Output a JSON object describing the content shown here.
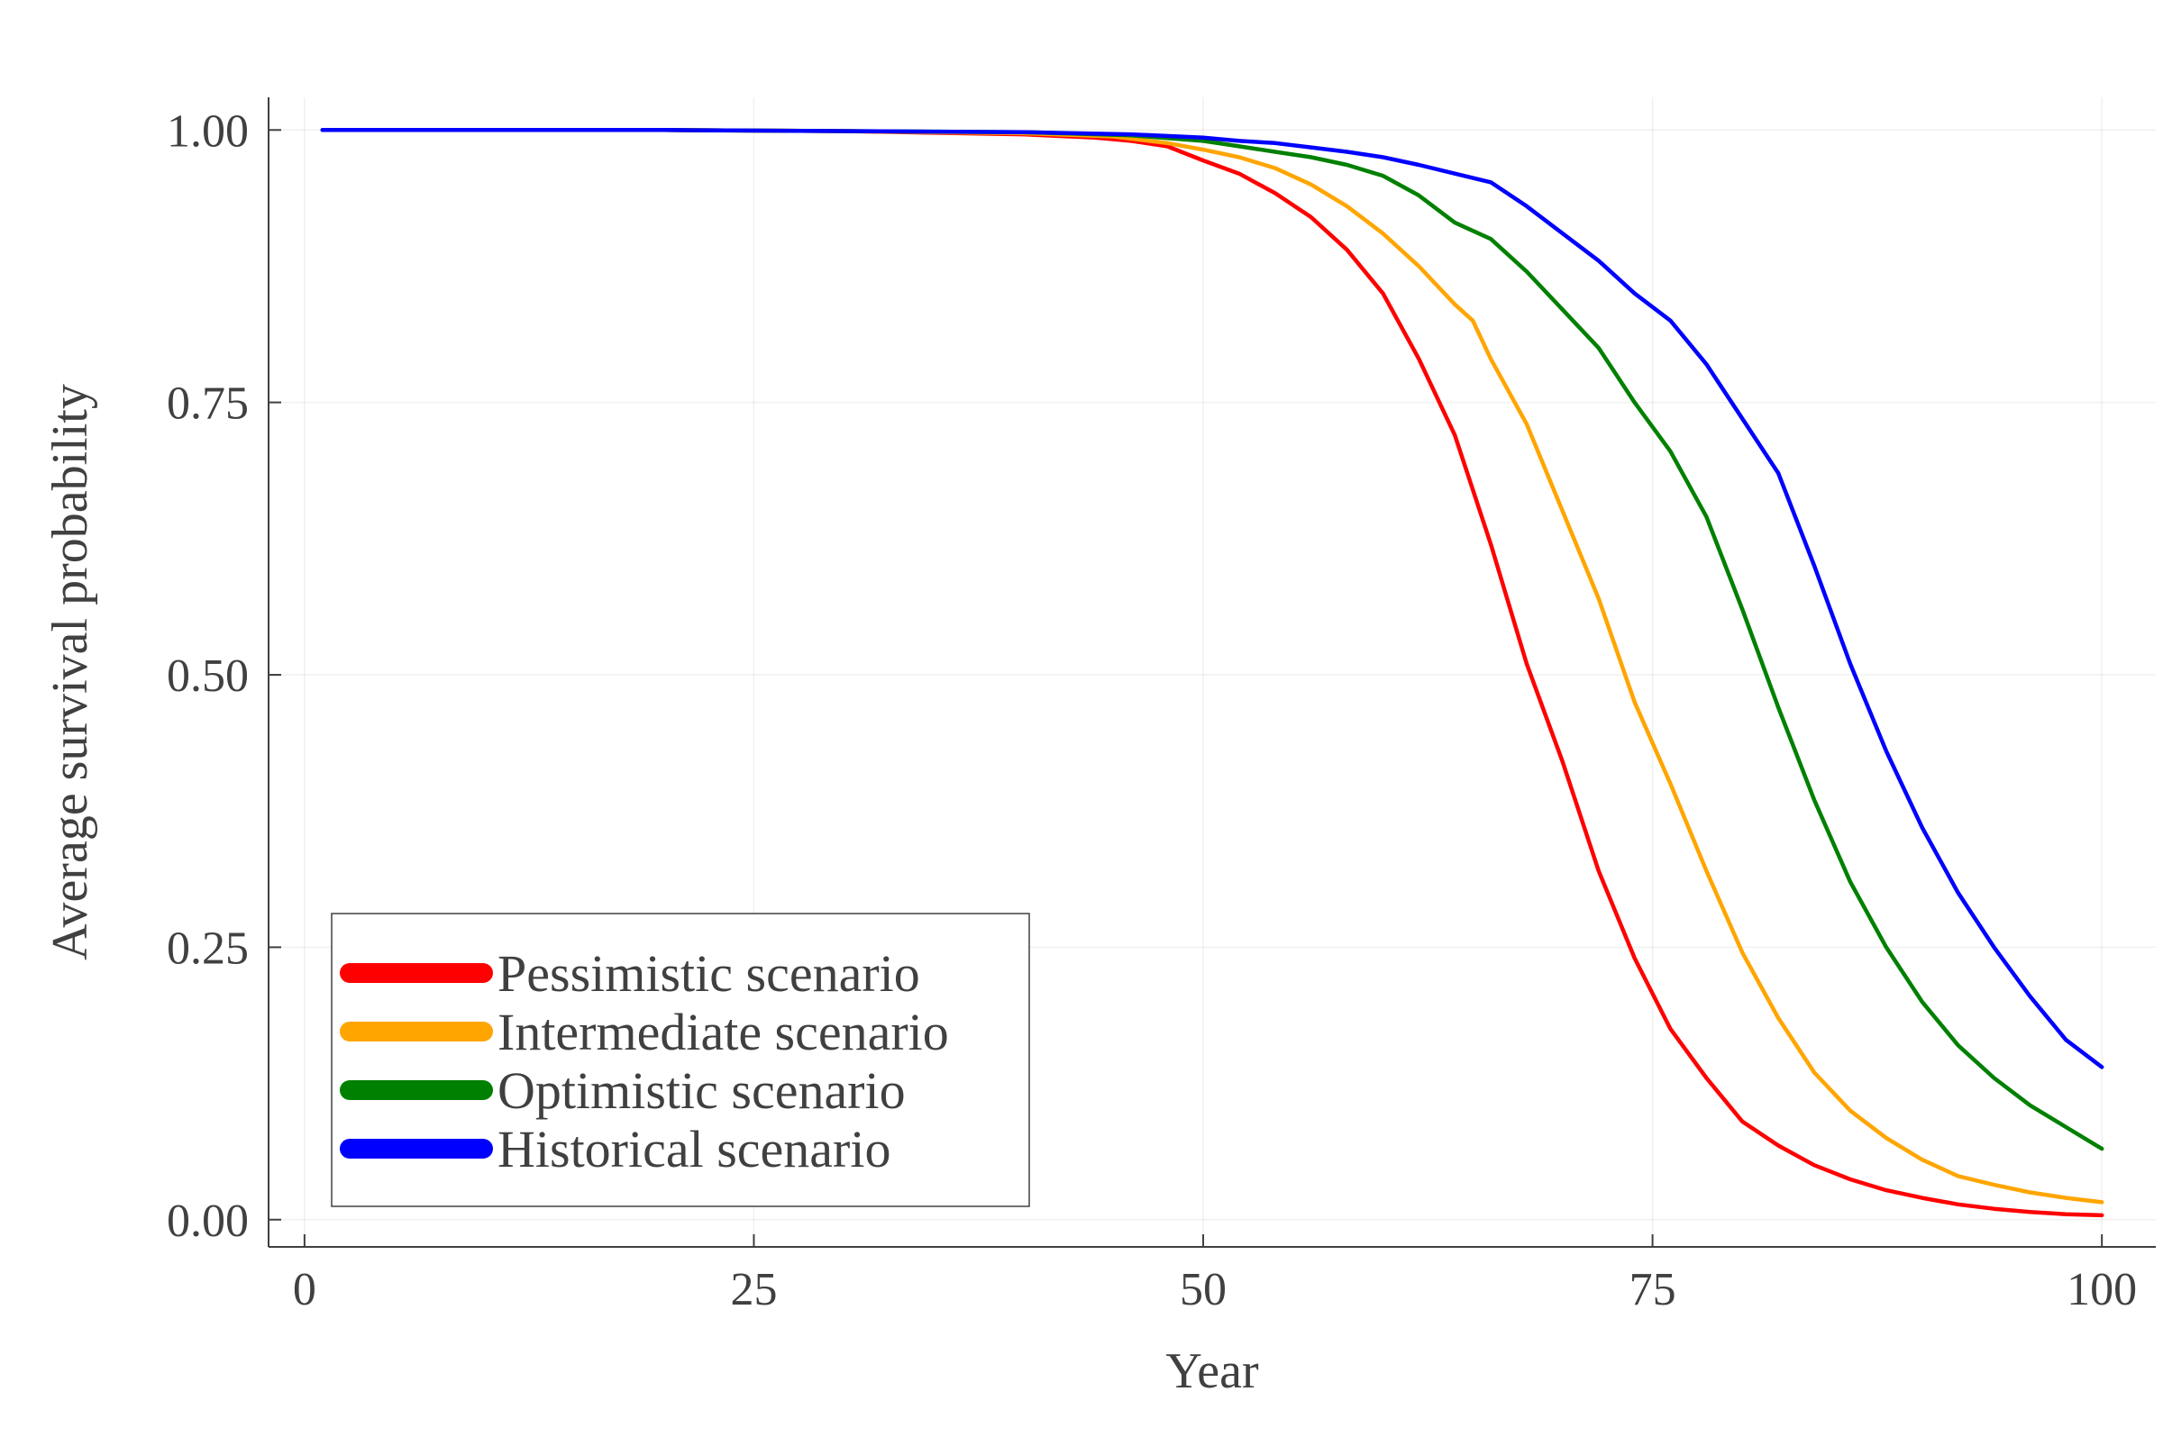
{
  "chart_data": {
    "type": "line",
    "title": "",
    "xlabel": "Year",
    "ylabel": "Average survival probability",
    "xlim": [
      -2,
      103
    ],
    "ylim": [
      -0.025,
      1.03
    ],
    "x_ticks": [
      0,
      25,
      50,
      75,
      100
    ],
    "x_tick_labels": [
      "0",
      "25",
      "50",
      "75",
      "100"
    ],
    "y_ticks": [
      0.0,
      0.25,
      0.5,
      0.75,
      1.0
    ],
    "y_tick_labels": [
      "0.00",
      "0.25",
      "0.50",
      "0.75",
      "1.00"
    ],
    "grid": true,
    "legend_position": "bottom-left",
    "series": [
      {
        "name": "Pessimistic scenario",
        "color": "#ff0000",
        "points": [
          [
            1,
            1.0
          ],
          [
            20,
            1.0
          ],
          [
            30,
            0.999
          ],
          [
            40,
            0.996
          ],
          [
            44,
            0.993
          ],
          [
            46,
            0.99
          ],
          [
            48,
            0.985
          ],
          [
            50,
            0.972
          ],
          [
            52,
            0.96
          ],
          [
            54,
            0.942
          ],
          [
            56,
            0.92
          ],
          [
            58,
            0.89
          ],
          [
            60,
            0.85
          ],
          [
            62,
            0.79
          ],
          [
            64,
            0.72
          ],
          [
            66,
            0.62
          ],
          [
            68,
            0.51
          ],
          [
            70,
            0.42
          ],
          [
            72,
            0.32
          ],
          [
            74,
            0.24
          ],
          [
            76,
            0.175
          ],
          [
            78,
            0.13
          ],
          [
            80,
            0.09
          ],
          [
            82,
            0.068
          ],
          [
            84,
            0.05
          ],
          [
            86,
            0.037
          ],
          [
            88,
            0.027
          ],
          [
            90,
            0.02
          ],
          [
            92,
            0.014
          ],
          [
            94,
            0.01
          ],
          [
            96,
            0.007
          ],
          [
            98,
            0.005
          ],
          [
            100,
            0.004
          ]
        ]
      },
      {
        "name": "Intermediate scenario",
        "color": "#ffa500",
        "points": [
          [
            1,
            1.0
          ],
          [
            20,
            1.0
          ],
          [
            30,
            0.999
          ],
          [
            40,
            0.997
          ],
          [
            45,
            0.994
          ],
          [
            48,
            0.988
          ],
          [
            50,
            0.982
          ],
          [
            52,
            0.975
          ],
          [
            54,
            0.965
          ],
          [
            56,
            0.95
          ],
          [
            58,
            0.93
          ],
          [
            60,
            0.905
          ],
          [
            62,
            0.875
          ],
          [
            64,
            0.84
          ],
          [
            65,
            0.825
          ],
          [
            66,
            0.79
          ],
          [
            68,
            0.73
          ],
          [
            70,
            0.65
          ],
          [
            72,
            0.57
          ],
          [
            74,
            0.475
          ],
          [
            76,
            0.4
          ],
          [
            78,
            0.32
          ],
          [
            80,
            0.245
          ],
          [
            82,
            0.185
          ],
          [
            84,
            0.135
          ],
          [
            86,
            0.1
          ],
          [
            88,
            0.075
          ],
          [
            90,
            0.055
          ],
          [
            92,
            0.04
          ],
          [
            94,
            0.032
          ],
          [
            96,
            0.025
          ],
          [
            98,
            0.02
          ],
          [
            100,
            0.016
          ]
        ]
      },
      {
        "name": "Optimistic scenario",
        "color": "#008000",
        "points": [
          [
            1,
            1.0
          ],
          [
            20,
            1.0
          ],
          [
            30,
            0.999
          ],
          [
            40,
            0.998
          ],
          [
            46,
            0.995
          ],
          [
            50,
            0.99
          ],
          [
            52,
            0.985
          ],
          [
            54,
            0.98
          ],
          [
            56,
            0.975
          ],
          [
            58,
            0.968
          ],
          [
            60,
            0.958
          ],
          [
            62,
            0.94
          ],
          [
            64,
            0.915
          ],
          [
            66,
            0.9
          ],
          [
            68,
            0.87
          ],
          [
            70,
            0.835
          ],
          [
            72,
            0.8
          ],
          [
            74,
            0.75
          ],
          [
            76,
            0.705
          ],
          [
            78,
            0.645
          ],
          [
            80,
            0.56
          ],
          [
            82,
            0.47
          ],
          [
            84,
            0.385
          ],
          [
            86,
            0.31
          ],
          [
            88,
            0.25
          ],
          [
            90,
            0.2
          ],
          [
            92,
            0.16
          ],
          [
            94,
            0.13
          ],
          [
            96,
            0.105
          ],
          [
            98,
            0.085
          ],
          [
            100,
            0.065
          ]
        ]
      },
      {
        "name": "Historical scenario",
        "color": "#0000ff",
        "points": [
          [
            1,
            1.0
          ],
          [
            20,
            1.0
          ],
          [
            30,
            0.999
          ],
          [
            40,
            0.998
          ],
          [
            46,
            0.996
          ],
          [
            50,
            0.993
          ],
          [
            52,
            0.99
          ],
          [
            54,
            0.988
          ],
          [
            56,
            0.984
          ],
          [
            58,
            0.98
          ],
          [
            60,
            0.975
          ],
          [
            62,
            0.968
          ],
          [
            64,
            0.96
          ],
          [
            66,
            0.952
          ],
          [
            68,
            0.93
          ],
          [
            70,
            0.905
          ],
          [
            72,
            0.88
          ],
          [
            74,
            0.85
          ],
          [
            76,
            0.825
          ],
          [
            78,
            0.785
          ],
          [
            80,
            0.735
          ],
          [
            82,
            0.685
          ],
          [
            84,
            0.6
          ],
          [
            86,
            0.51
          ],
          [
            88,
            0.43
          ],
          [
            90,
            0.36
          ],
          [
            92,
            0.3
          ],
          [
            94,
            0.25
          ],
          [
            96,
            0.205
          ],
          [
            98,
            0.165
          ],
          [
            100,
            0.14
          ]
        ]
      }
    ]
  }
}
